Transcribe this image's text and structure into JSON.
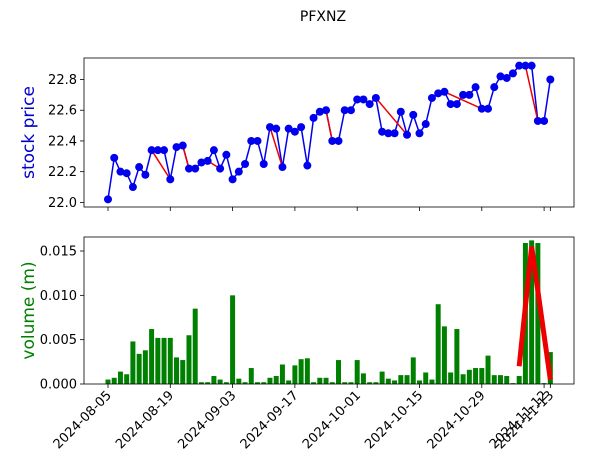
{
  "chart_data": [
    {
      "type": "line",
      "title": "PFXNZ",
      "ylabel": "stock price",
      "ylabel_color": "#0000cc",
      "x": [
        "2024-08-05",
        "2024-08-06",
        "2024-08-07",
        "2024-08-08",
        "2024-08-09",
        "2024-08-12",
        "2024-08-13",
        "2024-08-14",
        "2024-08-15",
        "2024-08-16",
        "2024-08-19",
        "2024-08-20",
        "2024-08-21",
        "2024-08-22",
        "2024-08-23",
        "2024-08-26",
        "2024-08-27",
        "2024-08-28",
        "2024-08-29",
        "2024-08-30",
        "2024-09-03",
        "2024-09-04",
        "2024-09-05",
        "2024-09-06",
        "2024-09-09",
        "2024-09-10",
        "2024-09-11",
        "2024-09-12",
        "2024-09-13",
        "2024-09-16",
        "2024-09-17",
        "2024-09-18",
        "2024-09-19",
        "2024-09-20",
        "2024-09-23",
        "2024-09-24",
        "2024-09-25",
        "2024-09-26",
        "2024-09-27",
        "2024-09-30",
        "2024-10-01",
        "2024-10-02",
        "2024-10-03",
        "2024-10-04",
        "2024-10-07",
        "2024-10-08",
        "2024-10-09",
        "2024-10-10",
        "2024-10-11",
        "2024-10-14",
        "2024-10-15",
        "2024-10-16",
        "2024-10-17",
        "2024-10-18",
        "2024-10-21",
        "2024-10-22",
        "2024-10-23",
        "2024-10-24",
        "2024-10-25",
        "2024-10-28",
        "2024-10-29",
        "2024-10-30",
        "2024-10-31",
        "2024-11-01",
        "2024-11-04",
        "2024-11-05",
        "2024-11-06",
        "2024-11-07",
        "2024-11-08",
        "2024-11-11",
        "2024-11-12",
        "2024-11-13"
      ],
      "series": [
        {
          "name": "price",
          "color": "#0000ee",
          "values": [
            22.02,
            22.29,
            22.2,
            22.19,
            22.1,
            22.23,
            22.18,
            22.34,
            22.34,
            22.34,
            22.15,
            22.36,
            22.37,
            22.22,
            22.22,
            22.26,
            22.27,
            22.34,
            22.22,
            22.31,
            22.15,
            22.2,
            22.25,
            22.4,
            22.4,
            22.25,
            22.49,
            22.48,
            22.23,
            22.48,
            22.46,
            22.49,
            22.24,
            22.55,
            22.59,
            22.6,
            22.4,
            22.4,
            22.6,
            22.6,
            22.67,
            22.67,
            22.64,
            22.68,
            22.46,
            22.45,
            22.45,
            22.59,
            22.44,
            22.57,
            22.45,
            22.51,
            22.68,
            22.71,
            22.72,
            22.64,
            22.64,
            22.7,
            22.7,
            22.75,
            22.61,
            22.61,
            22.75,
            22.82,
            22.81,
            22.84,
            22.89,
            22.89,
            22.89,
            22.53,
            22.53,
            22.8
          ]
        }
      ],
      "segments": {
        "color": "#ee0000",
        "lines": [
          {
            "x": [
              "2024-08-14",
              "2024-08-19"
            ],
            "y": [
              22.34,
              22.15
            ]
          },
          {
            "x": [
              "2024-08-21",
              "2024-08-22"
            ],
            "y": [
              22.37,
              22.22
            ]
          },
          {
            "x": [
              "2024-08-27",
              "2024-08-29"
            ],
            "y": [
              22.27,
              22.22
            ]
          },
          {
            "x": [
              "2024-09-11",
              "2024-09-13"
            ],
            "y": [
              22.49,
              22.23
            ]
          },
          {
            "x": [
              "2024-09-24",
              "2024-09-25"
            ],
            "y": [
              22.6,
              22.4
            ]
          },
          {
            "x": [
              "2024-10-04",
              "2024-10-11"
            ],
            "y": [
              22.68,
              22.44
            ]
          },
          {
            "x": [
              "2024-10-21",
              "2024-10-29"
            ],
            "y": [
              22.72,
              22.61
            ]
          },
          {
            "x": [
              "2024-11-07",
              "2024-11-11"
            ],
            "y": [
              22.89,
              22.53
            ]
          }
        ]
      },
      "ylim": [
        21.97,
        22.94
      ],
      "yticks": [
        {
          "value": 22.0,
          "label": "22.0"
        },
        22.2,
        22.4,
        22.6,
        22.8
      ]
    },
    {
      "type": "bar",
      "ylabel": "volume (m)",
      "ylabel_color": "#008000",
      "series": [
        {
          "name": "volume",
          "color": "#008000",
          "values": [
            0.0005,
            0.0007,
            0.0014,
            0.0011,
            0.0048,
            0.0034,
            0.0038,
            0.0062,
            0.0052,
            0.0052,
            0.0052,
            0.003,
            0.0027,
            0.0055,
            0.0085,
            0.0002,
            0.0002,
            0.0009,
            0.0005,
            0.0002,
            0.01,
            0.0006,
            0.0002,
            0.0018,
            0.0002,
            0.0002,
            0.0007,
            0.0009,
            0.0022,
            0.0004,
            0.0021,
            0.0028,
            0.0029,
            0.0002,
            0.0007,
            0.0007,
            0.0002,
            0.0027,
            0.0002,
            0.0002,
            0.0027,
            0.0012,
            0.0002,
            0.0002,
            0.0014,
            0.0006,
            0.0004,
            0.001,
            0.001,
            0.003,
            0.0004,
            0.0013,
            0.0005,
            0.009,
            0.0065,
            0.0013,
            0.0062,
            0.0011,
            0.0016,
            0.0018,
            0.0018,
            0.0032,
            0.001,
            0.001,
            0.0009,
            0.0001,
            0.0009,
            0.0159,
            0.0162,
            0.0159,
            0.0001,
            0.0036
          ]
        }
      ],
      "segments": {
        "color": "#ee0000",
        "lines": [
          {
            "x": [
              "2024-11-06",
              "2024-11-08",
              "2024-11-13"
            ],
            "y": [
              0.002,
              0.0155,
              0.0005
            ]
          }
        ]
      },
      "ylim": [
        0,
        0.01658
      ],
      "yticks": [
        {
          "value": 0,
          "label": "0.000"
        },
        {
          "value": 0.005,
          "label": "0.005"
        },
        {
          "value": 0.01,
          "label": "0.010"
        },
        {
          "value": 0.015,
          "label": "0.015"
        }
      ],
      "xticks": [
        "2024-08-05",
        "2024-08-19",
        "2024-09-03",
        "2024-09-17",
        "2024-10-01",
        "2024-10-15",
        "2024-10-29",
        "2024-11-12",
        "2024-11-13"
      ]
    }
  ]
}
